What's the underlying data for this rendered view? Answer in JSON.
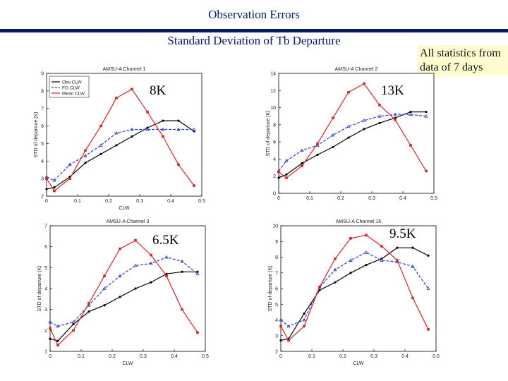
{
  "header": {
    "title": "Observation Errors",
    "subtitle": "Standard Deviation of Tb Departure",
    "note": "All statistics from data of 7 days"
  },
  "colors": {
    "obs": "#000000",
    "fg": "#2a3fd6",
    "mean": "#e02020",
    "accent": "#001a6e"
  },
  "chart_data": [
    {
      "type": "line",
      "title": "AMSU-A Channel 1",
      "annotation": "8K",
      "xlabel": "CLW",
      "ylabel": "STD of departure (K)",
      "xlim": [
        0,
        0.5
      ],
      "ylim": [
        2,
        9
      ],
      "xticks": [
        "0",
        "0.1",
        "0.2",
        "0.3",
        "0.4",
        "0.5"
      ],
      "yticks": [
        "2",
        "3",
        "4",
        "5",
        "6",
        "7",
        "8",
        "9"
      ],
      "legend": [
        "Obs CLW",
        "FG CLW",
        "Mean CLW"
      ],
      "x": [
        0,
        0.025,
        0.075,
        0.125,
        0.175,
        0.225,
        0.275,
        0.325,
        0.375,
        0.425,
        0.475
      ],
      "series": [
        {
          "name": "Obs CLW",
          "values": [
            2.4,
            2.5,
            3.1,
            3.9,
            4.4,
            4.9,
            5.4,
            5.9,
            6.3,
            6.3,
            5.7
          ]
        },
        {
          "name": "FG CLW",
          "values": [
            3.1,
            2.9,
            3.8,
            4.3,
            4.9,
            5.6,
            5.8,
            5.8,
            5.8,
            5.8,
            5.8
          ]
        },
        {
          "name": "Mean CLW",
          "values": [
            3.0,
            2.3,
            3.0,
            4.6,
            6.0,
            7.6,
            8.1,
            6.8,
            5.4,
            3.8,
            2.6
          ]
        }
      ]
    },
    {
      "type": "line",
      "title": "AMSU-A Channel 2",
      "annotation": "13K",
      "xlabel": "",
      "ylabel": "STD of departure (K)",
      "xlim": [
        0,
        0.5
      ],
      "ylim": [
        0,
        14
      ],
      "xticks": [
        "0",
        "0.1",
        "0.2",
        "0.3",
        "0.4",
        "0.5"
      ],
      "yticks": [
        "0",
        "2",
        "4",
        "6",
        "8",
        "10",
        "12",
        "14"
      ],
      "x": [
        0,
        0.025,
        0.075,
        0.125,
        0.175,
        0.225,
        0.275,
        0.325,
        0.375,
        0.425,
        0.475
      ],
      "series": [
        {
          "name": "Obs CLW",
          "values": [
            1.8,
            2.2,
            3.5,
            4.5,
            5.4,
            6.5,
            7.5,
            8.2,
            8.8,
            9.5,
            9.5
          ]
        },
        {
          "name": "FG CLW",
          "values": [
            2.6,
            3.8,
            5.0,
            5.6,
            6.8,
            7.8,
            8.5,
            9.0,
            9.2,
            9.2,
            9.0
          ]
        },
        {
          "name": "Mean CLW",
          "values": [
            2.5,
            1.8,
            3.2,
            5.8,
            8.8,
            11.8,
            12.8,
            10.3,
            8.6,
            5.6,
            2.6
          ]
        }
      ]
    },
    {
      "type": "line",
      "title": "AMSU-A Channel 3",
      "annotation": "6.5K",
      "xlabel": "CLW",
      "ylabel": "STD of departure (K)",
      "xlim": [
        0,
        0.5
      ],
      "ylim": [
        1,
        7
      ],
      "xticks": [
        "0",
        "0.1",
        "0.2",
        "0.3",
        "0.4",
        "0.5"
      ],
      "yticks": [
        "1",
        "2",
        "3",
        "4",
        "5",
        "6",
        "7"
      ],
      "x": [
        0,
        0.025,
        0.075,
        0.125,
        0.175,
        0.225,
        0.275,
        0.325,
        0.375,
        0.425,
        0.475
      ],
      "series": [
        {
          "name": "Obs CLW",
          "values": [
            1.6,
            1.5,
            2.3,
            2.9,
            3.2,
            3.6,
            4.0,
            4.3,
            4.7,
            4.8,
            4.8
          ]
        },
        {
          "name": "FG CLW",
          "values": [
            2.4,
            2.2,
            2.4,
            3.2,
            4.0,
            4.6,
            5.1,
            5.2,
            5.5,
            5.3,
            4.7
          ]
        },
        {
          "name": "Mean CLW",
          "values": [
            2.1,
            1.3,
            2.0,
            3.3,
            4.6,
            5.9,
            6.3,
            5.6,
            4.6,
            3.0,
            1.9
          ]
        }
      ]
    },
    {
      "type": "line",
      "title": "AMSU-A Channel 15",
      "annotation": "9.5K",
      "xlabel": "CLW",
      "ylabel": "STD of departure (K)",
      "xlim": [
        0,
        0.5
      ],
      "ylim": [
        2,
        10
      ],
      "xticks": [
        "0",
        "0.1",
        "0.2",
        "0.3",
        "0.4",
        "0.5"
      ],
      "yticks": [
        "2",
        "3",
        "4",
        "5",
        "6",
        "7",
        "8",
        "9",
        "10"
      ],
      "x": [
        0,
        0.025,
        0.075,
        0.125,
        0.175,
        0.225,
        0.275,
        0.325,
        0.375,
        0.425,
        0.475
      ],
      "series": [
        {
          "name": "Obs CLW",
          "values": [
            2.7,
            2.8,
            4.4,
            5.9,
            6.4,
            7.0,
            7.5,
            7.9,
            8.6,
            8.6,
            8.1
          ]
        },
        {
          "name": "FG CLW",
          "values": [
            4.0,
            3.6,
            4.0,
            6.1,
            7.2,
            7.8,
            8.3,
            7.8,
            7.7,
            7.4,
            6.0
          ]
        },
        {
          "name": "Mean CLW",
          "values": [
            3.6,
            2.7,
            3.6,
            6.1,
            7.9,
            9.2,
            9.4,
            8.7,
            7.8,
            5.4,
            3.4
          ]
        }
      ]
    }
  ]
}
